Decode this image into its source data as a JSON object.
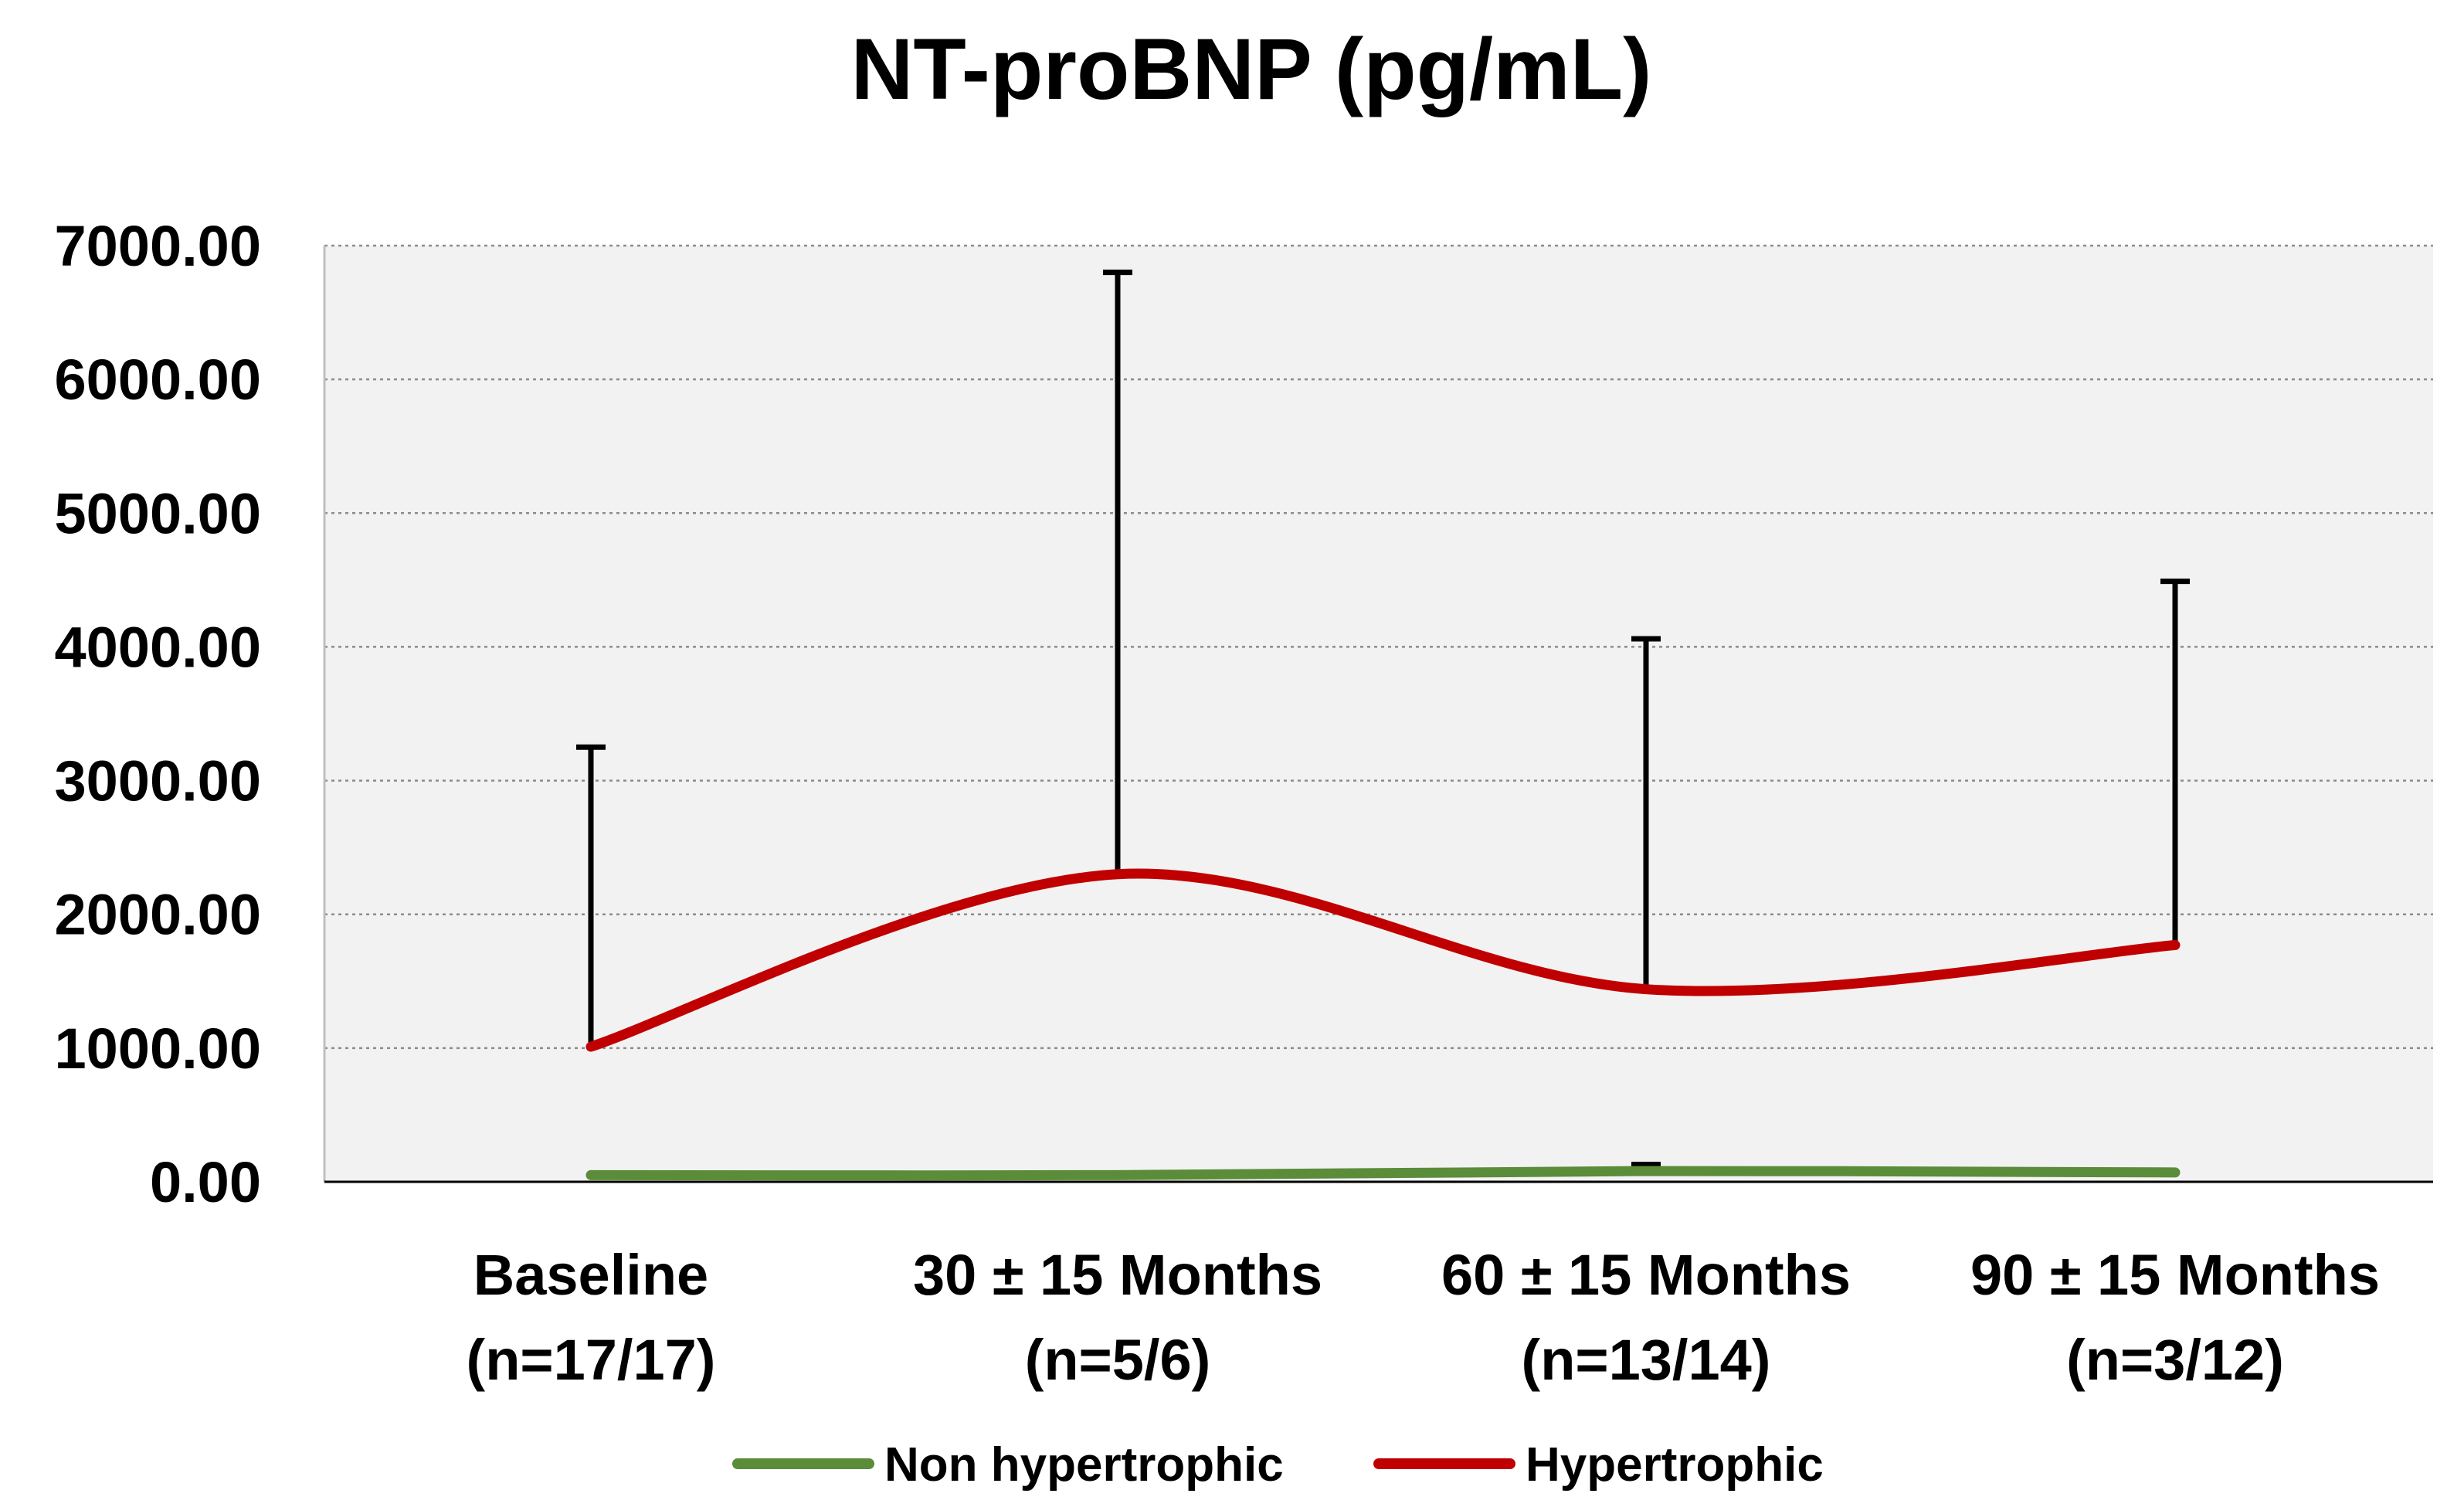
{
  "chart_data": {
    "type": "line",
    "title": "NT-proBNP (pg/mL)",
    "xlabel": "",
    "ylabel": "",
    "ylim": [
      0,
      7000
    ],
    "y_ticks": [
      0,
      1000,
      2000,
      3000,
      4000,
      5000,
      6000,
      7000
    ],
    "y_tick_labels": [
      "0.00",
      "1000.00",
      "2000.00",
      "3000.00",
      "4000.00",
      "5000.00",
      "6000.00",
      "7000.00"
    ],
    "grid": true,
    "categories": [
      {
        "line1": "Baseline",
        "line2": "(n=17/17)"
      },
      {
        "line1": "30 ± 15 Months",
        "line2": "(n=5/6)"
      },
      {
        "line1": "60 ± 15 Months",
        "line2": "(n=13/14)"
      },
      {
        "line1": "90 ± 15 Months",
        "line2": "(n=3/12)"
      }
    ],
    "series": [
      {
        "name": "Non hypertrophic",
        "color": "#5b8c3a",
        "values": [
          50,
          50,
          80,
          70
        ],
        "error_upper": [
          null,
          null,
          130,
          null
        ]
      },
      {
        "name": "Hypertrophic",
        "color": "#c00000",
        "values": [
          1010,
          2300,
          1440,
          1770
        ],
        "error_upper": [
          3250,
          6800,
          4060,
          4490
        ]
      }
    ],
    "legend": "bottom-center"
  }
}
